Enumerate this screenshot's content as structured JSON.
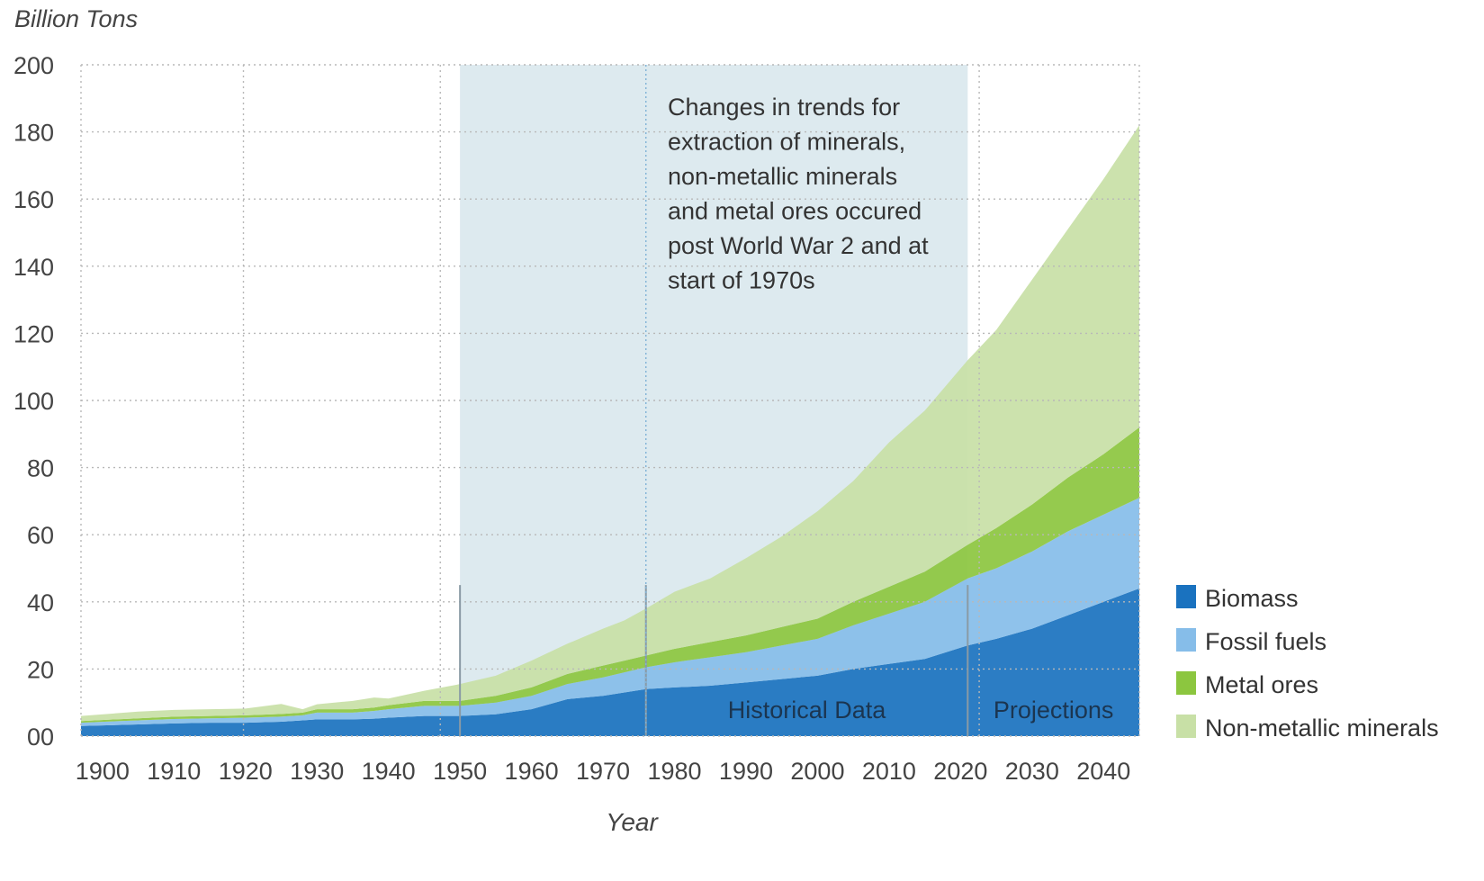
{
  "chart_data": {
    "type": "area",
    "stacked": true,
    "ylabel": "Billion Tons",
    "xlabel": "Year",
    "ylim": [
      0,
      200
    ],
    "xlim": [
      1897,
      2045
    ],
    "y_ticks": [
      0,
      20,
      40,
      60,
      80,
      100,
      120,
      140,
      160,
      180,
      200
    ],
    "y_tick_labels": [
      "00",
      "20",
      "40",
      "60",
      "80",
      "100",
      "120",
      "140",
      "160",
      "180",
      "200"
    ],
    "x_ticks": [
      1900,
      1910,
      1920,
      1930,
      1940,
      1950,
      1960,
      1970,
      1980,
      1990,
      2000,
      2010,
      2020,
      2030,
      2040
    ],
    "x_tick_labels": [
      "1900",
      "1910",
      "1920",
      "1930",
      "1940",
      "1950",
      "1960",
      "1970",
      "1980",
      "1990",
      "2000",
      "2010",
      "2020",
      "2030",
      "2040"
    ],
    "grid": true,
    "legend_position": "right",
    "annotation": "Changes in trends for extraction of minerals, non-metallic minerals and metal ores occured post World War 2 and at start of 1970s",
    "annotation_lines": [
      "Changes in trends for",
      "extraction of minerals,",
      "non-metallic minerals",
      "and metal ores occured",
      "post World War 2 and at",
      "start of 1970s"
    ],
    "regions": [
      {
        "label": "",
        "from": 1950,
        "to": 2021,
        "color": "#ddeaef"
      },
      {
        "label": "Historical Data",
        "from": 1976,
        "to": 2021
      },
      {
        "label": "Projections",
        "from": 2021,
        "to": 2045
      }
    ],
    "markers": [
      1950,
      1976,
      2021
    ],
    "x": [
      1897,
      1905,
      1910,
      1915,
      1920,
      1925,
      1928,
      1930,
      1935,
      1938,
      1940,
      1945,
      1950,
      1955,
      1960,
      1965,
      1970,
      1973,
      1976,
      1980,
      1985,
      1990,
      1995,
      2000,
      2005,
      2010,
      2015,
      2021,
      2025,
      2030,
      2035,
      2040,
      2045
    ],
    "series": [
      {
        "name": "Biomass",
        "color": "#1a72bf",
        "values": [
          3,
          3.5,
          3.8,
          4,
          4,
          4.3,
          4.7,
          5,
          5,
          5.2,
          5.5,
          6,
          6,
          6.5,
          8,
          11,
          12,
          13,
          14,
          14.5,
          15,
          16,
          17,
          18,
          20,
          21.5,
          23,
          27,
          29,
          32,
          36,
          40,
          44
        ]
      },
      {
        "name": "Fossil fuels",
        "color": "#86bde9",
        "values": [
          1,
          1.2,
          1.3,
          1.3,
          1.5,
          1.5,
          1.5,
          2,
          2,
          2.3,
          2.5,
          3,
          3,
          3.5,
          4,
          4.5,
          5.5,
          6,
          6.5,
          7.5,
          8.5,
          9,
          10,
          11,
          13,
          15,
          17,
          20,
          21,
          23,
          25,
          26,
          27
        ]
      },
      {
        "name": "Metal ores",
        "color": "#8cc63f",
        "values": [
          0.5,
          0.6,
          0.7,
          0.7,
          0.7,
          0.8,
          0.8,
          1,
          1,
          1,
          1.2,
          1.5,
          1.5,
          2,
          2.5,
          3,
          3.5,
          3.5,
          3.5,
          4,
          4.5,
          5,
          5.5,
          6,
          7,
          8,
          9,
          10,
          12,
          14,
          16,
          18,
          21
        ]
      },
      {
        "name": "Non-metallic minerals",
        "color": "#c8e0a6",
        "values": [
          1.5,
          2,
          2,
          2,
          2,
          3,
          1,
          1.5,
          2.5,
          3,
          2,
          3,
          5,
          6,
          8,
          9,
          11,
          12,
          14,
          17,
          19,
          23,
          27,
          32,
          36,
          43,
          48,
          55,
          59,
          67,
          74,
          82,
          90
        ]
      }
    ]
  }
}
